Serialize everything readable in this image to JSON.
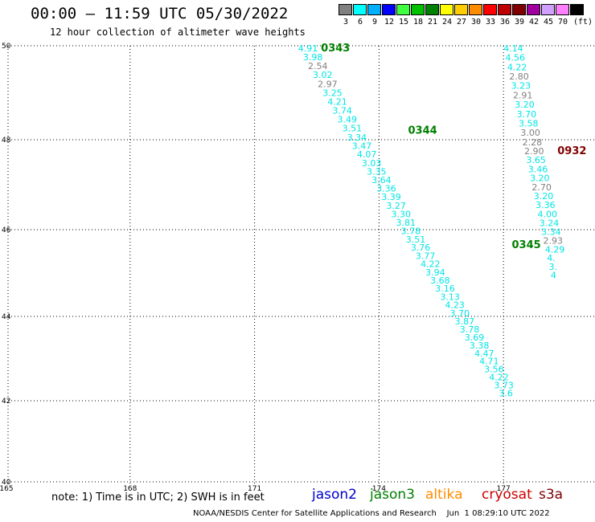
{
  "header": {
    "title": "00:00 – 11:59 UTC 05/30/2022",
    "subtitle": "12 hour collection of altimeter wave heights"
  },
  "colorbar": {
    "unit": "(ft)",
    "swatches": [
      {
        "label": "3",
        "color": "#808080"
      },
      {
        "label": "6",
        "color": "#00ffff"
      },
      {
        "label": "9",
        "color": "#00b0ff"
      },
      {
        "label": "12",
        "color": "#0000ff"
      },
      {
        "label": "15",
        "color": "#40ff40"
      },
      {
        "label": "18",
        "color": "#00c000"
      },
      {
        "label": "21",
        "color": "#008000"
      },
      {
        "label": "24",
        "color": "#ffff00"
      },
      {
        "label": "27",
        "color": "#ffcc00"
      },
      {
        "label": "30",
        "color": "#ff8c00"
      },
      {
        "label": "33",
        "color": "#ff0000"
      },
      {
        "label": "36",
        "color": "#c00000"
      },
      {
        "label": "39",
        "color": "#800000"
      },
      {
        "label": "42",
        "color": "#a000a0"
      },
      {
        "label": "45",
        "color": "#d0a0ff"
      },
      {
        "label": "70",
        "color": "#ff80ff"
      },
      {
        "label": "",
        "color": "#000000"
      }
    ]
  },
  "map": {
    "lat_labels": [
      "50",
      "48",
      "46",
      "44",
      "42",
      "40"
    ],
    "lon_labels": [
      "165",
      "168",
      "171",
      "174",
      "177"
    ],
    "lon_range": [
      165,
      179.3
    ],
    "lat_range": [
      40,
      50
    ]
  },
  "colors": {
    "cyan": "#00e5e5",
    "gray": "#808080",
    "green": "#008000",
    "darkred": "#800000"
  },
  "pass_labels": [
    {
      "text": "0343",
      "lon": 172.6,
      "lat": 49.95,
      "color": "green"
    },
    {
      "text": "0344",
      "lon": 174.7,
      "lat": 48.2,
      "color": "green"
    },
    {
      "text": "0345",
      "lon": 177.2,
      "lat": 45.65,
      "color": "green"
    },
    {
      "text": "0932",
      "lon": 178.3,
      "lat": 47.75,
      "color": "darkred"
    }
  ],
  "tracks": [
    {
      "name": "track-a",
      "start": [
        172.05,
        49.95
      ],
      "step": [
        0.118,
        -0.1895
      ],
      "values": [
        [
          "4.91",
          "cyan"
        ],
        [
          "3.98",
          "cyan"
        ],
        [
          "2.54",
          "gray"
        ],
        [
          "3.02",
          "cyan"
        ],
        [
          "2.97",
          "gray"
        ],
        [
          "3.25",
          "cyan"
        ],
        [
          "4.21",
          "cyan"
        ],
        [
          "3.74",
          "cyan"
        ],
        [
          "3.49",
          "cyan"
        ],
        [
          "3.51",
          "cyan"
        ],
        [
          "3.34",
          "cyan"
        ],
        [
          "3.47",
          "cyan"
        ],
        [
          "4.07",
          "cyan"
        ],
        [
          "3.03",
          "cyan"
        ],
        [
          "3.35",
          "cyan"
        ],
        [
          "3.64",
          "cyan"
        ],
        [
          "3.36",
          "cyan"
        ],
        [
          "3.39",
          "cyan"
        ],
        [
          "3.27",
          "cyan"
        ],
        [
          "3.30",
          "cyan"
        ],
        [
          "3.81",
          "cyan"
        ],
        [
          "3.78",
          "cyan"
        ],
        [
          "3.51",
          "cyan"
        ],
        [
          "3.76",
          "cyan"
        ],
        [
          "3.77",
          "cyan"
        ],
        [
          "4.22",
          "cyan"
        ],
        [
          "3.94",
          "cyan"
        ],
        [
          "3.68",
          "cyan"
        ],
        [
          "3.16",
          "cyan"
        ],
        [
          "3.13",
          "cyan"
        ],
        [
          "4.23",
          "cyan"
        ],
        [
          "3.70",
          "cyan"
        ],
        [
          "3.87",
          "cyan"
        ],
        [
          "3.78",
          "cyan"
        ],
        [
          "3.69",
          "cyan"
        ],
        [
          "3.38",
          "cyan"
        ],
        [
          "4.47",
          "cyan"
        ],
        [
          "4.71",
          "cyan"
        ],
        [
          "3.56",
          "cyan"
        ],
        [
          "4.22",
          "cyan"
        ],
        [
          "3.73",
          "cyan"
        ],
        [
          "3.6",
          "cyan"
        ]
      ]
    },
    {
      "name": "track-b",
      "start": [
        177.0,
        49.95
      ],
      "step": [
        0.0455,
        -0.2
      ],
      "values": [
        [
          "4.14",
          "cyan"
        ],
        [
          "4.56",
          "cyan"
        ],
        [
          "4.22",
          "cyan"
        ],
        [
          "2.80",
          "gray"
        ],
        [
          "3.23",
          "cyan"
        ],
        [
          "2.91",
          "gray"
        ],
        [
          "3.20",
          "cyan"
        ],
        [
          "3.70",
          "cyan"
        ],
        [
          "3.58",
          "cyan"
        ],
        [
          "3.00",
          "gray"
        ],
        [
          "2.28",
          "gray"
        ],
        [
          "2.90",
          "gray"
        ],
        [
          "3.65",
          "cyan"
        ],
        [
          "3.46",
          "cyan"
        ],
        [
          "3.20",
          "cyan"
        ],
        [
          "2.70",
          "gray"
        ],
        [
          "3.20",
          "cyan"
        ],
        [
          "3.36",
          "cyan"
        ],
        [
          "4.00",
          "cyan"
        ],
        [
          "3.24",
          "cyan"
        ],
        [
          "3.34",
          "cyan"
        ],
        [
          "2.93",
          "gray"
        ],
        [
          "4.29",
          "cyan"
        ],
        [
          "4.",
          "cyan"
        ],
        [
          "3.",
          "cyan"
        ],
        [
          "4",
          "cyan"
        ]
      ]
    }
  ],
  "footer": {
    "note": "note: 1) Time is in UTC; 2) SWH is in feet",
    "satellites": [
      {
        "name": "jason2",
        "color": "#0000cc"
      },
      {
        "name": "jason3",
        "color": "#008000"
      },
      {
        "name": "altika",
        "color": "#ff8c00"
      },
      {
        "name": "cryosat",
        "color": "#cc0000"
      },
      {
        "name": "s3a",
        "color": "#800000"
      }
    ],
    "credit": "NOAA/NESDIS Center for Satellite Applications and Research    Jun  1 08:29:10 UTC 2022"
  }
}
